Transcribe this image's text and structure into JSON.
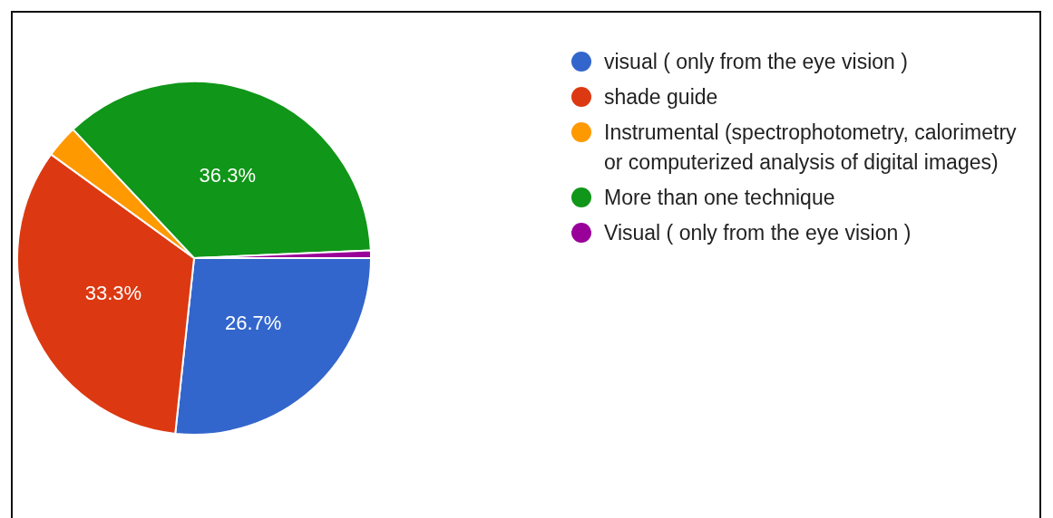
{
  "chart_data": {
    "type": "pie",
    "categories": [
      "visual ( only from the eye vision )",
      "shade guide",
      "Instrumental (spectrophotometry, calorimetry or computerized analysis of digital images)",
      "More than one technique",
      "Visual ( only from the eye vision )"
    ],
    "values": [
      26.7,
      33.3,
      3.0,
      36.3,
      0.7
    ],
    "colors": [
      "#3366cc",
      "#dc3912",
      "#ff9900",
      "#109618",
      "#990099"
    ],
    "value_labels": [
      "26.7%",
      "33.3%",
      null,
      "36.3%",
      null
    ],
    "legend": "right"
  }
}
